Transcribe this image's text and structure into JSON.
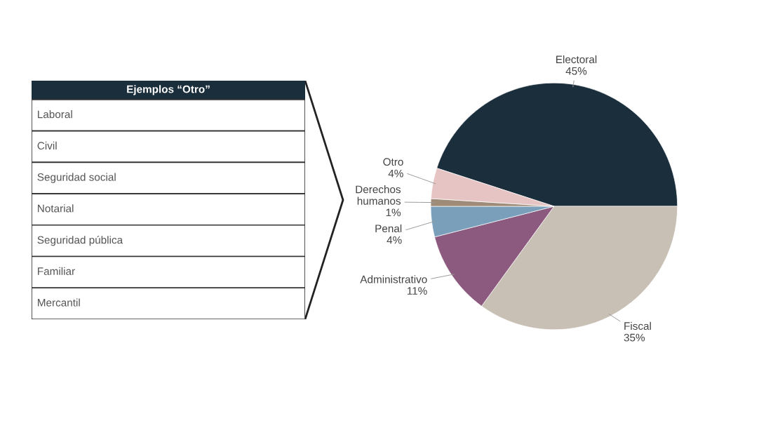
{
  "chart_data": {
    "type": "pie",
    "categories": [
      "Electoral",
      "Fiscal",
      "Administrativo",
      "Penal",
      "Derechos\nhumanos",
      "Otro"
    ],
    "values": [
      45,
      35,
      11,
      4,
      1,
      4
    ],
    "value_labels": [
      "45%",
      "35%",
      "11%",
      "4%",
      "1%",
      "4%"
    ],
    "colors": [
      "#1b2e3c",
      "#c8bfb5",
      "#8c5a7e",
      "#7a9fba",
      "#9e8b78",
      "#e6c4c4"
    ],
    "annotations": [
      "Ejemplos “Otro”",
      "Laboral",
      "Civil",
      "Seguridad social",
      "Notarial",
      "Seguridad pública",
      "Familiar",
      "Mercantil"
    ],
    "legend": false
  }
}
